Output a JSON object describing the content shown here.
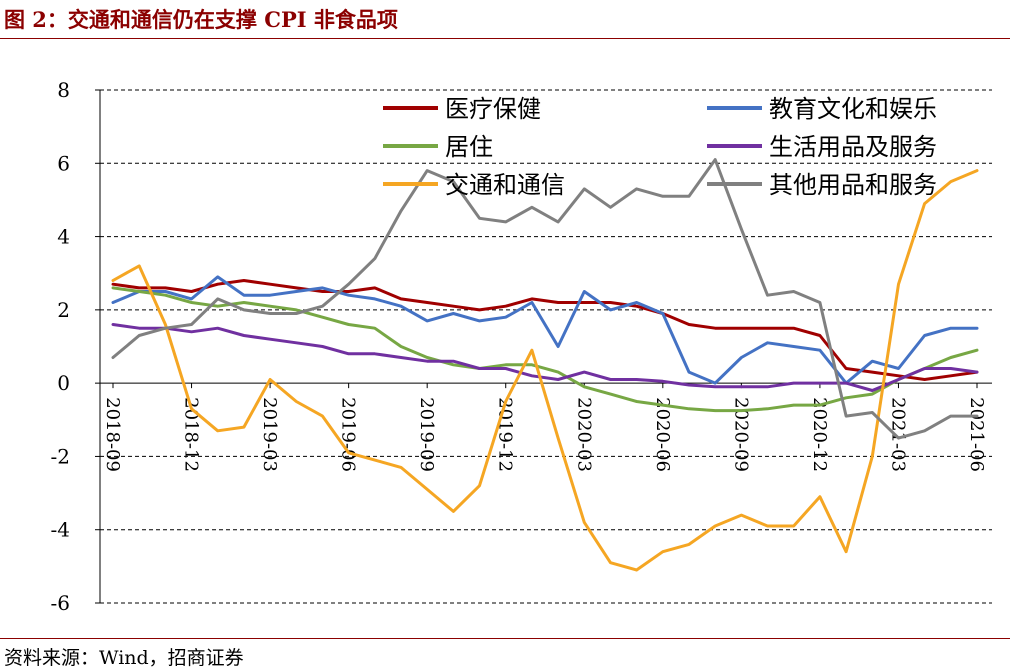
{
  "header": {
    "title": "图 2：交通和通信仍在支撑 CPI 非食品项"
  },
  "footer": {
    "source": "资料来源：Wind，招商证券"
  },
  "chart_data": {
    "type": "line",
    "ylim": [
      -6,
      8
    ],
    "yticks": [
      -6,
      -4,
      -2,
      0,
      2,
      4,
      6,
      8
    ],
    "grid": true,
    "legend_position": "top",
    "x": [
      "2018-09",
      "2018-10",
      "2018-11",
      "2018-12",
      "2019-01",
      "2019-02",
      "2019-03",
      "2019-04",
      "2019-05",
      "2019-06",
      "2019-07",
      "2019-08",
      "2019-09",
      "2019-10",
      "2019-11",
      "2019-12",
      "2020-01",
      "2020-02",
      "2020-03",
      "2020-04",
      "2020-05",
      "2020-06",
      "2020-07",
      "2020-08",
      "2020-09",
      "2020-10",
      "2020-11",
      "2020-12",
      "2021-01",
      "2021-02",
      "2021-03",
      "2021-04",
      "2021-05",
      "2021-06"
    ],
    "xtick_labels": [
      "2018-09",
      "2018-12",
      "2019-03",
      "2019-06",
      "2019-09",
      "2019-12",
      "2020-03",
      "2020-06",
      "2020-09",
      "2020-12",
      "2021-03",
      "2021-06"
    ],
    "series": [
      {
        "name": "医疗保健",
        "color": "#a00000",
        "values": [
          2.7,
          2.6,
          2.6,
          2.5,
          2.7,
          2.8,
          2.7,
          2.6,
          2.5,
          2.5,
          2.6,
          2.3,
          2.2,
          2.1,
          2.0,
          2.1,
          2.3,
          2.2,
          2.2,
          2.2,
          2.1,
          1.9,
          1.6,
          1.5,
          1.5,
          1.5,
          1.5,
          1.3,
          0.4,
          0.3,
          0.2,
          0.1,
          0.2,
          0.3
        ]
      },
      {
        "name": "教育文化和娱乐",
        "color": "#4472c4",
        "values": [
          2.2,
          2.5,
          2.5,
          2.3,
          2.9,
          2.4,
          2.4,
          2.5,
          2.6,
          2.4,
          2.3,
          2.1,
          1.7,
          1.9,
          1.7,
          1.8,
          2.2,
          1.0,
          2.5,
          2.0,
          2.2,
          1.9,
          0.3,
          0.0,
          0.7,
          1.1,
          1.0,
          0.9,
          0.0,
          0.6,
          0.4,
          1.3,
          1.5,
          1.5
        ]
      },
      {
        "name": "居住",
        "color": "#77a744",
        "values": [
          2.6,
          2.5,
          2.4,
          2.2,
          2.1,
          2.2,
          2.1,
          2.0,
          1.8,
          1.6,
          1.5,
          1.0,
          0.7,
          0.5,
          0.4,
          0.5,
          0.5,
          0.3,
          -0.1,
          -0.3,
          -0.5,
          -0.6,
          -0.7,
          -0.75,
          -0.75,
          -0.7,
          -0.6,
          -0.6,
          -0.4,
          -0.3,
          0.1,
          0.4,
          0.7,
          0.9
        ]
      },
      {
        "name": "生活用品及服务",
        "color": "#7030a0",
        "values": [
          1.6,
          1.5,
          1.5,
          1.4,
          1.5,
          1.3,
          1.2,
          1.1,
          1.0,
          0.8,
          0.8,
          0.7,
          0.6,
          0.6,
          0.4,
          0.4,
          0.2,
          0.1,
          0.3,
          0.1,
          0.1,
          0.05,
          -0.05,
          -0.1,
          -0.1,
          -0.1,
          0.0,
          0.0,
          0.0,
          -0.2,
          0.1,
          0.4,
          0.4,
          0.3
        ]
      },
      {
        "name": "交通和通信",
        "color": "#f5a623",
        "values": [
          2.8,
          3.2,
          1.6,
          -0.7,
          -1.3,
          -1.2,
          0.1,
          -0.5,
          -0.9,
          -1.9,
          -2.1,
          -2.3,
          -2.9,
          -3.5,
          -2.8,
          -0.5,
          0.9,
          -1.5,
          -3.8,
          -4.9,
          -5.1,
          -4.6,
          -4.4,
          -3.9,
          -3.6,
          -3.9,
          -3.9,
          -3.1,
          -4.6,
          -2.0,
          2.7,
          4.9,
          5.5,
          5.8
        ]
      },
      {
        "name": "其他用品和服务",
        "color": "#808080",
        "values": [
          0.7,
          1.3,
          1.5,
          1.6,
          2.3,
          2.0,
          1.9,
          1.9,
          2.1,
          2.7,
          3.4,
          4.7,
          5.8,
          5.5,
          4.5,
          4.4,
          4.8,
          4.4,
          5.3,
          4.8,
          5.3,
          5.1,
          5.1,
          6.1,
          4.2,
          2.4,
          2.5,
          2.2,
          -0.9,
          -0.8,
          -1.5,
          -1.3,
          -0.9,
          -0.9
        ]
      }
    ]
  }
}
